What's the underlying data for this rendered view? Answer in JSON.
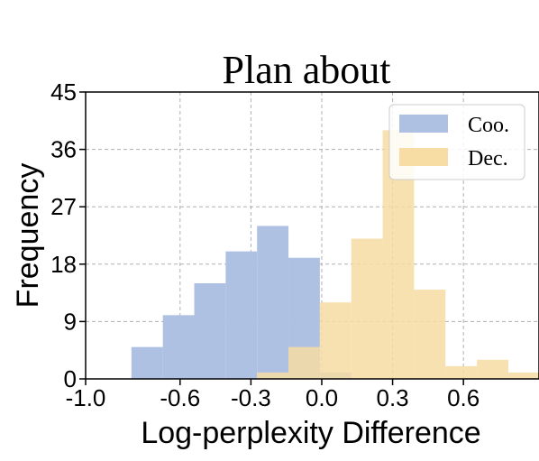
{
  "chart_data": {
    "type": "bar",
    "title": "Plan about",
    "xlabel": "Log-perplexity Difference",
    "ylabel": "Frequency",
    "xlim": [
      -1.0,
      0.92
    ],
    "ylim": [
      0,
      45
    ],
    "xticks": [
      "-1.0",
      "-0.6",
      "-0.3",
      "0.0",
      "0.3",
      "0.6"
    ],
    "xtick_values": [
      -1.0,
      -0.6,
      -0.3,
      0.0,
      0.3,
      0.6
    ],
    "yticks": [
      "0",
      "9",
      "18",
      "27",
      "36",
      "45"
    ],
    "ytick_values": [
      0,
      9,
      18,
      27,
      36,
      45
    ],
    "grid": true,
    "legend_position": "top-right",
    "series": [
      {
        "name": "Coo.",
        "color": "#aec1e3",
        "bin_width": 0.133,
        "bin_starts": [
          -0.806,
          -0.673,
          -0.54,
          -0.407,
          -0.274,
          -0.141,
          -0.008
        ],
        "values": [
          5,
          10,
          15,
          20,
          24,
          19,
          1
        ]
      },
      {
        "name": "Dec.",
        "color": "#f7dca3",
        "bin_width": 0.133,
        "bin_starts": [
          -0.274,
          -0.141,
          -0.008,
          0.125,
          0.258,
          0.391,
          0.524,
          0.657,
          0.79
        ],
        "values": [
          1,
          5,
          12,
          22,
          39,
          14,
          2,
          3,
          1
        ]
      }
    ]
  }
}
